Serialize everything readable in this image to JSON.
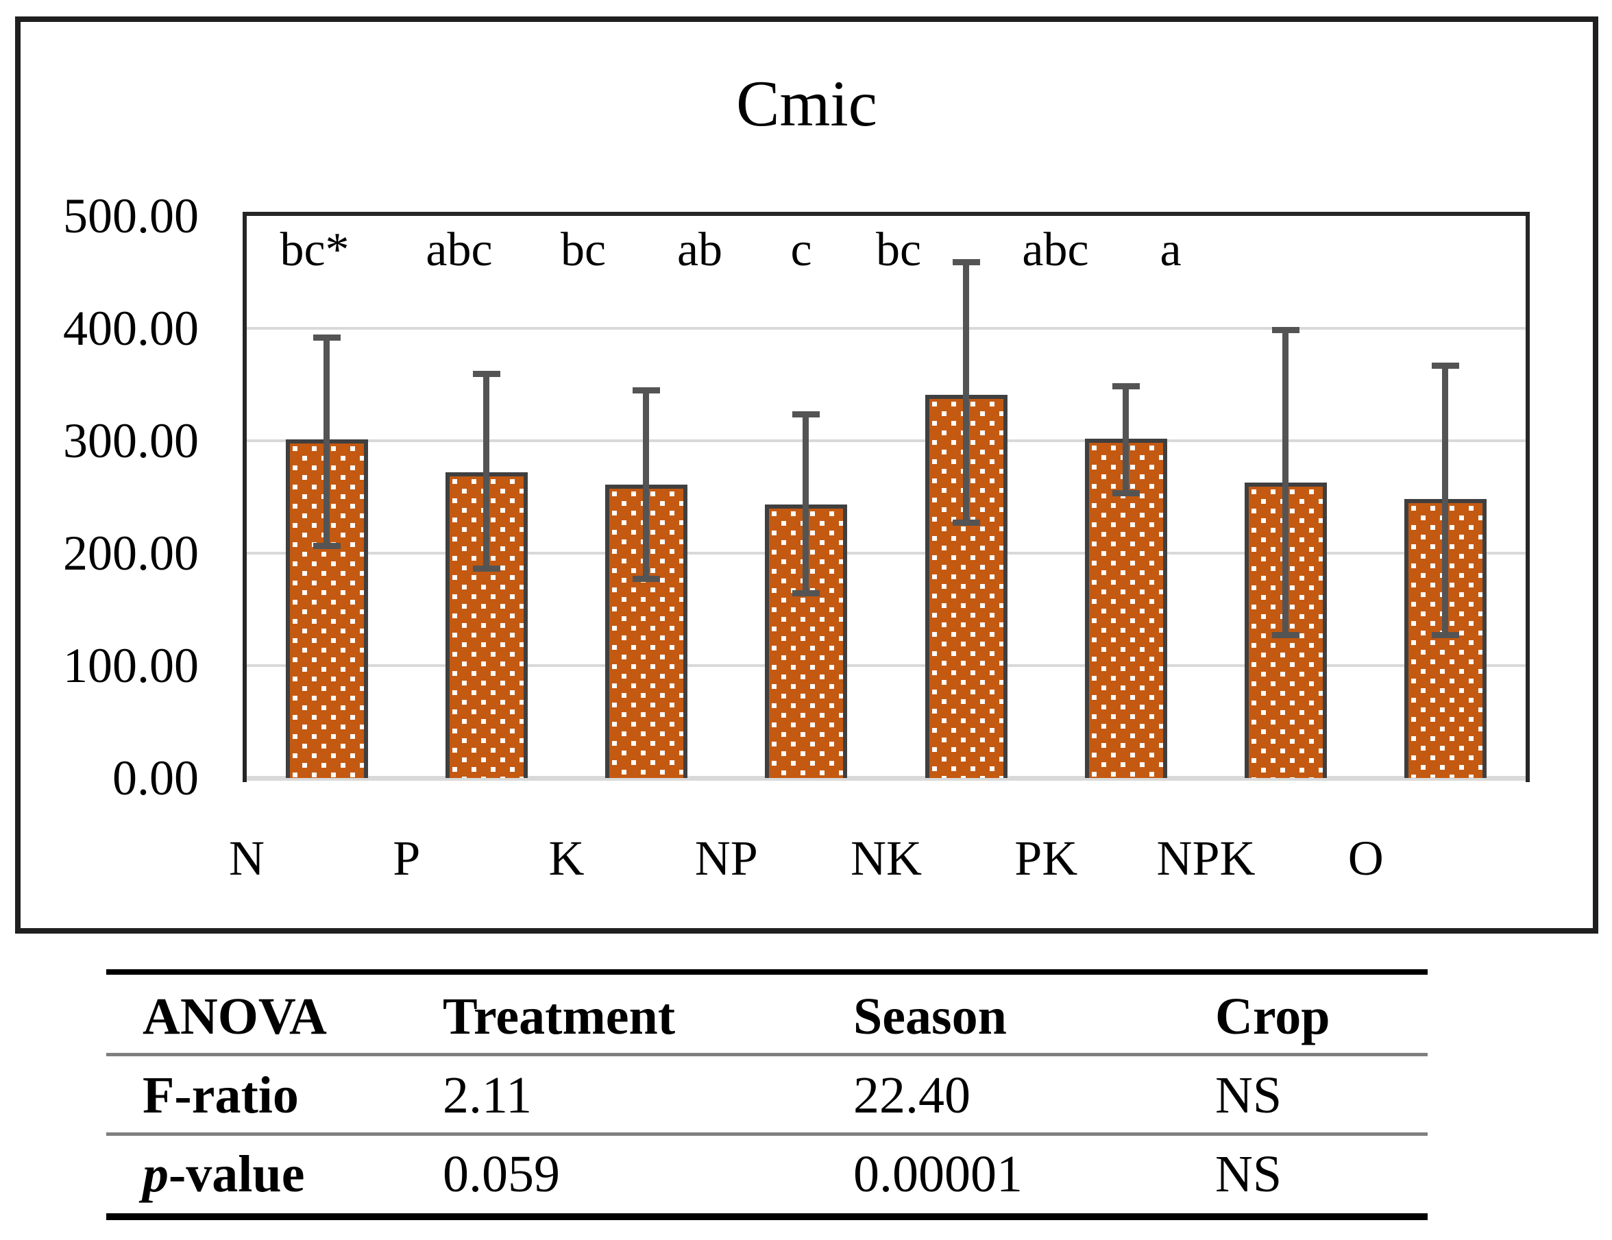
{
  "chart_data": {
    "type": "bar",
    "title": "Cmic",
    "categories": [
      "N",
      "P",
      "K",
      "NP",
      "NK",
      "PK",
      "NPK",
      "O"
    ],
    "values": [
      301,
      272,
      261,
      243,
      341,
      302,
      263,
      248
    ],
    "error_upper": [
      392,
      360,
      345,
      324,
      459,
      349,
      399,
      367
    ],
    "error_lower": [
      206,
      186,
      177,
      164,
      227,
      253,
      127,
      127
    ],
    "significance_letters": [
      "bc*",
      "abc",
      "bc",
      "ab",
      "c",
      "bc",
      "abc",
      "a"
    ],
    "ylim": [
      0,
      500
    ],
    "ytick_labels": [
      "500.00",
      "400.00",
      "300.00",
      "200.00",
      "100.00",
      "0.00"
    ],
    "xlabel": "",
    "ylabel": "",
    "grid": true,
    "legend": "none",
    "bar_fill_color": "#C45911",
    "bar_pattern": "white-square-dots",
    "bar_border_color": "#3F3F3F",
    "error_bar_color": "#545454",
    "gridline_color": "#D9D9D9",
    "frame_color": "#1F1F1F"
  },
  "table": {
    "headers": [
      "ANOVA",
      "Treatment",
      "Season",
      "Crop"
    ],
    "rows": [
      {
        "label": "F-ratio",
        "cells": [
          "2.11",
          "22.40",
          "NS"
        ]
      },
      {
        "label": "p-value",
        "cells": [
          "0.059",
          "0.00001",
          "NS"
        ]
      }
    ]
  }
}
